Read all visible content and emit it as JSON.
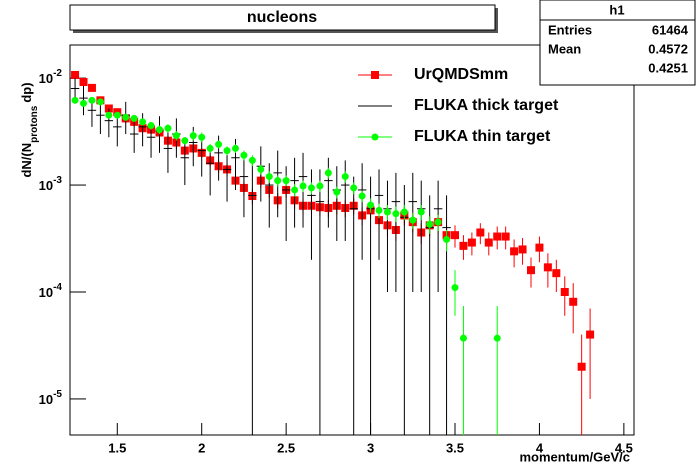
{
  "chart_data": {
    "type": "scatter",
    "title": "nucleons",
    "xlabel": "momentum/GeV/c",
    "ylabel": [
      "dN/(N",
      "protons",
      "dp)"
    ],
    "xlim": [
      1.22,
      4.56
    ],
    "ylim": [
      4.6e-06,
      0.0204
    ],
    "log_y": true,
    "xticks": [
      1.5,
      2,
      2.5,
      3,
      3.5,
      4,
      4.5
    ],
    "yticks": [
      {
        "value": 0.01,
        "label": "10",
        "exponent": "-2"
      },
      {
        "value": 0.001,
        "label": "10",
        "exponent": "-3"
      },
      {
        "value": 0.0001,
        "label": "10",
        "exponent": "-4"
      },
      {
        "value": 1e-05,
        "label": "10",
        "exponent": "-5"
      }
    ],
    "stats": {
      "title": "h1",
      "rows": [
        {
          "label": "Entries",
          "value": "61464"
        },
        {
          "label": "Mean",
          "value": "0.4572"
        },
        {
          "value": "0.4251"
        }
      ]
    },
    "series": [
      {
        "name": "UrQMDSmm",
        "color": "#ff0000",
        "marker": "square",
        "x": [
          1.25,
          1.3,
          1.35,
          1.4,
          1.45,
          1.5,
          1.55,
          1.6,
          1.65,
          1.7,
          1.75,
          1.8,
          1.85,
          1.9,
          1.95,
          2,
          2.05,
          2.1,
          2.15,
          2.2,
          2.25,
          2.3,
          2.35,
          2.4,
          2.45,
          2.5,
          2.55,
          2.6,
          2.65,
          2.7,
          2.75,
          2.8,
          2.85,
          2.9,
          2.95,
          3,
          3.05,
          3.1,
          3.15,
          3.2,
          3.25,
          3.3,
          3.35,
          3.4,
          3.45,
          3.5,
          3.55,
          3.6,
          3.65,
          3.7,
          3.75,
          3.8,
          3.85,
          3.9,
          3.95,
          4,
          4.05,
          4.1,
          4.15,
          4.2,
          4.25,
          4.3
        ],
        "values": [
          0.0107,
          0.0092,
          0.0081,
          0.0062,
          0.0052,
          0.0048,
          0.0042,
          0.0039,
          0.0034,
          0.0033,
          0.0031,
          0.0026,
          0.0025,
          0.0021,
          0.0022,
          0.002,
          0.0017,
          0.0015,
          0.0014,
          0.0011,
          0.00094,
          0.00079,
          0.0011,
          0.0009,
          0.00072,
          0.0009,
          0.00072,
          0.00064,
          0.00064,
          0.00062,
          0.00061,
          0.00064,
          0.00061,
          0.00064,
          0.00052,
          0.00058,
          0.00047,
          0.00042,
          0.00038,
          0.00052,
          0.00045,
          0.00036,
          0.00042,
          0.00045,
          0.00034,
          0.00034,
          0.00027,
          0.00029,
          0.00036,
          0.00029,
          0.00033,
          0.00033,
          0.00024,
          0.00025,
          0.00016,
          0.00026,
          0.00017,
          0.00015,
          0.0001,
          8.1e-05,
          2e-05,
          4e-05
        ],
        "errors": [
          0.0008,
          0.0007,
          0.0006,
          0.0005,
          0.0004,
          0.0004,
          0.0004,
          0.0003,
          0.0003,
          0.0003,
          0.0003,
          0.0003,
          0.0003,
          0.0002,
          0.0002,
          0.0002,
          0.0002,
          0.0002,
          0.0002,
          0.0002,
          0.00015,
          0.00013,
          0.00016,
          0.00014,
          0.00012,
          0.00014,
          0.00012,
          0.00011,
          0.00011,
          0.00011,
          0.00011,
          0.00011,
          0.00011,
          0.00011,
          0.0001,
          0.0001,
          9e-05,
          9e-05,
          8e-05,
          0.0001,
          9e-05,
          8e-05,
          9e-05,
          9e-05,
          8e-05,
          8e-05,
          7e-05,
          7e-05,
          8e-05,
          7e-05,
          8e-05,
          8e-05,
          7e-05,
          7e-05,
          5e-05,
          7e-05,
          6e-05,
          5e-05,
          4e-05,
          4e-05,
          2e-05,
          3e-05
        ]
      },
      {
        "name": "FLUKA thick target",
        "color": "#000000",
        "marker": "none",
        "x": [
          1.25,
          1.3,
          1.35,
          1.4,
          1.45,
          1.5,
          1.55,
          1.6,
          1.65,
          1.7,
          1.75,
          1.8,
          1.85,
          1.9,
          1.95,
          2,
          2.05,
          2.1,
          2.15,
          2.2,
          2.25,
          2.3,
          2.35,
          2.4,
          2.45,
          2.5,
          2.55,
          2.6,
          2.65,
          2.7,
          2.75,
          2.8,
          2.85,
          2.9,
          2.95,
          3,
          3.05,
          3.1,
          3.15,
          3.2,
          3.25,
          3.3,
          3.35,
          3.4,
          3.45
        ],
        "values": [
          0.008,
          0.0065,
          0.005,
          0.0045,
          0.004,
          0.0035,
          0.0045,
          0.003,
          0.0035,
          0.0028,
          0.0032,
          0.0022,
          0.003,
          0.0018,
          0.0025,
          0.0021,
          0.0016,
          0.002,
          0.0014,
          0.0018,
          0.0012,
          0.0008,
          0.0015,
          0.001,
          0.0013,
          0.0009,
          0.0011,
          0.0012,
          0.0008,
          0.0007,
          0.0011,
          0.0009,
          0.001,
          0.0006,
          0.0009,
          0.0006,
          0.0008,
          0.0006,
          0.0007,
          0.0005,
          0.0007,
          0.0006,
          0.0004,
          0.0006,
          0.0004
        ],
        "errors": [
          0.002,
          0.002,
          0.0015,
          0.0015,
          0.0012,
          0.0012,
          0.0015,
          0.001,
          0.0012,
          0.001,
          0.0012,
          0.0009,
          0.0012,
          0.0008,
          0.001,
          0.0009,
          0.0008,
          0.0009,
          0.0007,
          0.0009,
          0.0007,
          0.0008,
          0.0008,
          0.0006,
          0.0008,
          0.0006,
          0.0007,
          0.0008,
          0.0006,
          0.0007,
          0.0007,
          0.0006,
          0.0007,
          0.0006,
          0.0007,
          0.0006,
          0.0006,
          0.0005,
          0.0006,
          0.0005,
          0.0006,
          0.0005,
          0.0004,
          0.0005,
          0.0004
        ]
      },
      {
        "name": "FLUKA thin target",
        "color": "#00ff00",
        "marker": "circle",
        "x": [
          1.25,
          1.3,
          1.35,
          1.4,
          1.45,
          1.5,
          1.55,
          1.6,
          1.65,
          1.7,
          1.75,
          1.8,
          1.85,
          1.9,
          1.95,
          2,
          2.05,
          2.1,
          2.15,
          2.2,
          2.25,
          2.3,
          2.35,
          2.4,
          2.45,
          2.5,
          2.55,
          2.6,
          2.65,
          2.7,
          2.75,
          2.8,
          2.85,
          2.9,
          2.95,
          3,
          3.05,
          3.1,
          3.15,
          3.2,
          3.25,
          3.3,
          3.35,
          3.4,
          3.45,
          3.5,
          3.55,
          3.75
        ],
        "values": [
          0.0062,
          0.0058,
          0.0062,
          0.006,
          0.0045,
          0.0045,
          0.0043,
          0.0042,
          0.0039,
          0.0036,
          0.0033,
          0.0034,
          0.0029,
          0.0026,
          0.0029,
          0.0028,
          0.0022,
          0.0024,
          0.0021,
          0.0022,
          0.0019,
          0.0017,
          0.0014,
          0.0012,
          0.0011,
          0.0011,
          0.0009,
          0.00098,
          0.00094,
          0.00098,
          0.0013,
          0.00086,
          0.0012,
          0.00094,
          0.00079,
          0.00065,
          0.00058,
          0.00056,
          0.00054,
          0.00056,
          0.00047,
          0.00056,
          0.00043,
          0.00045,
          0.00031,
          0.00011,
          3.7e-05,
          3.7e-05
        ],
        "errors": [
          0.0004,
          0.0004,
          0.0004,
          0.0004,
          0.0003,
          0.0003,
          0.0003,
          0.0003,
          0.0003,
          0.0003,
          0.0003,
          0.0003,
          0.0003,
          0.0002,
          0.0003,
          0.0003,
          0.0002,
          0.0002,
          0.0002,
          0.0002,
          0.0002,
          0.0002,
          0.00015,
          0.00015,
          0.00013,
          0.00013,
          0.00012,
          0.00012,
          0.00012,
          0.00012,
          0.00015,
          0.00011,
          0.00015,
          0.00012,
          0.0001,
          0.0001,
          9e-05,
          9e-05,
          9e-05,
          9e-05,
          8e-05,
          9e-05,
          8e-05,
          8e-05,
          7e-05,
          5e-05,
          3.7e-05,
          3.7e-05
        ]
      }
    ]
  }
}
